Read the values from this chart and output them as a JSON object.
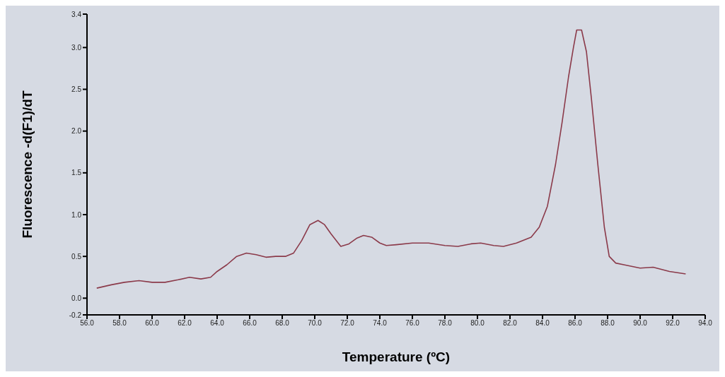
{
  "chart_data": {
    "type": "line",
    "xlabel": "Temperature (ºC)",
    "ylabel": "Fluorescence -d(F1)/dT",
    "xlim": [
      56,
      94
    ],
    "ylim": [
      -0.2,
      3.4
    ],
    "xticks": [
      {
        "value": 56,
        "label": "56.0"
      },
      {
        "value": 58,
        "label": "58.0"
      },
      {
        "value": 60,
        "label": "60.0"
      },
      {
        "value": 62,
        "label": "62.0"
      },
      {
        "value": 64,
        "label": "64.0"
      },
      {
        "value": 66,
        "label": "66.0"
      },
      {
        "value": 68,
        "label": "68.0"
      },
      {
        "value": 70,
        "label": "70.0"
      },
      {
        "value": 72,
        "label": "72.0"
      },
      {
        "value": 74,
        "label": "74.0"
      },
      {
        "value": 76,
        "label": "76.0"
      },
      {
        "value": 78,
        "label": "78.0"
      },
      {
        "value": 80,
        "label": "80.0"
      },
      {
        "value": 82,
        "label": "82.0"
      },
      {
        "value": 84,
        "label": "84.0"
      },
      {
        "value": 86,
        "label": "86.0"
      },
      {
        "value": 88,
        "label": "88.0"
      },
      {
        "value": 90,
        "label": "90.0"
      },
      {
        "value": 92,
        "label": "92.0"
      },
      {
        "value": 94,
        "label": "94.0"
      }
    ],
    "yticks": [
      {
        "value": -0.2,
        "label": "-0.2"
      },
      {
        "value": 0,
        "label": "0.0"
      },
      {
        "value": 0.5,
        "label": "0.5"
      },
      {
        "value": 1,
        "label": "1.0"
      },
      {
        "value": 1.5,
        "label": "1.5"
      },
      {
        "value": 2,
        "label": "2.0"
      },
      {
        "value": 2.5,
        "label": "2.5"
      },
      {
        "value": 3,
        "label": "3.0"
      },
      {
        "value": 3.4,
        "label": "3.4"
      }
    ],
    "grid": false,
    "legend": false,
    "marker": "none",
    "line_style": "solid",
    "series": [
      {
        "color": "#8b3a4a",
        "x": [
          56.6,
          57.5,
          58.3,
          59.2,
          60.0,
          60.8,
          61.6,
          62.3,
          63.0,
          63.6,
          64.0,
          64.6,
          65.2,
          65.8,
          66.4,
          67.0,
          67.6,
          68.2,
          68.7,
          69.2,
          69.7,
          70.2,
          70.6,
          71.0,
          71.6,
          72.1,
          72.6,
          73.0,
          73.5,
          74.0,
          74.4,
          75.0,
          76.0,
          77.0,
          78.0,
          78.8,
          79.6,
          80.2,
          81.0,
          81.6,
          82.4,
          83.3,
          83.8,
          84.3,
          84.8,
          85.2,
          85.6,
          85.9,
          86.1,
          86.4,
          86.7,
          87.0,
          87.4,
          87.8,
          88.1,
          88.5,
          89.0,
          90.0,
          90.8,
          91.8,
          92.8
        ],
        "values": [
          0.12,
          0.16,
          0.19,
          0.21,
          0.19,
          0.19,
          0.22,
          0.25,
          0.23,
          0.25,
          0.32,
          0.4,
          0.5,
          0.54,
          0.52,
          0.49,
          0.5,
          0.5,
          0.54,
          0.69,
          0.88,
          0.93,
          0.88,
          0.77,
          0.62,
          0.65,
          0.72,
          0.75,
          0.73,
          0.66,
          0.63,
          0.64,
          0.66,
          0.66,
          0.63,
          0.62,
          0.65,
          0.66,
          0.63,
          0.62,
          0.66,
          0.73,
          0.85,
          1.1,
          1.6,
          2.1,
          2.65,
          3.0,
          3.21,
          3.21,
          2.95,
          2.4,
          1.6,
          0.85,
          0.5,
          0.42,
          0.4,
          0.36,
          0.37,
          0.32,
          0.29
        ]
      }
    ]
  }
}
